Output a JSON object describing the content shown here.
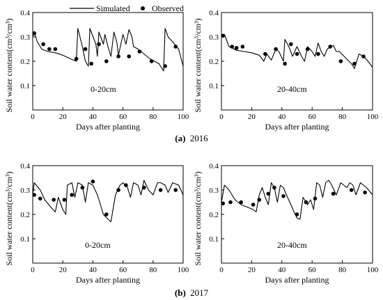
{
  "legend": {
    "simulated": "Simulated",
    "observed": "Observed"
  },
  "captions": [
    {
      "label": "(a)",
      "year": "2016"
    },
    {
      "label": "(b)",
      "year": "2017"
    }
  ],
  "chart_data": [
    {
      "type": "line",
      "panel": "2016 0-20cm",
      "annotation": "0-20cm",
      "xlabel": "Days after planting",
      "ylabel": "Soil water content(cm³/cm³)",
      "xlim": [
        0,
        100
      ],
      "ylim": [
        0.0,
        0.4
      ],
      "xticks": [
        0,
        20,
        40,
        60,
        80,
        100
      ],
      "yticks": [
        "0.1",
        "0.2",
        "0.3",
        "0.4"
      ],
      "series": [
        {
          "name": "Simulated",
          "kind": "line",
          "x": [
            0,
            1,
            3,
            6,
            10,
            15,
            20,
            25,
            29,
            30,
            33,
            35,
            37,
            38,
            42,
            43,
            44,
            47,
            48,
            50,
            52,
            54,
            56,
            57,
            60,
            62,
            64,
            66,
            67,
            70,
            74,
            78,
            84,
            87,
            88,
            90,
            93,
            97,
            100
          ],
          "y": [
            0.3,
            0.32,
            0.28,
            0.25,
            0.24,
            0.235,
            0.225,
            0.21,
            0.2,
            0.335,
            0.26,
            0.2,
            0.18,
            0.335,
            0.27,
            0.22,
            0.32,
            0.27,
            0.31,
            0.26,
            0.22,
            0.32,
            0.275,
            0.225,
            0.31,
            0.27,
            0.33,
            0.3,
            0.26,
            0.25,
            0.23,
            0.21,
            0.19,
            0.16,
            0.335,
            0.3,
            0.28,
            0.25,
            0.18
          ]
        },
        {
          "name": "Observed",
          "kind": "scatter",
          "x": [
            1,
            7,
            11,
            15,
            29,
            35,
            39,
            44,
            49,
            57,
            64,
            71,
            79,
            88,
            95
          ],
          "y": [
            0.315,
            0.27,
            0.25,
            0.25,
            0.21,
            0.25,
            0.19,
            0.27,
            0.2,
            0.22,
            0.22,
            0.24,
            0.2,
            0.18,
            0.26
          ]
        }
      ]
    },
    {
      "type": "line",
      "panel": "2016 20-40cm",
      "annotation": "20-40cm",
      "xlabel": "Days after planting",
      "ylabel": "Soil water content(cm³/cm³)",
      "xlim": [
        0,
        100
      ],
      "ylim": [
        0.0,
        0.4
      ],
      "xticks": [
        0,
        20,
        40,
        60,
        80,
        100
      ],
      "yticks": [
        "0.1",
        "0.2",
        "0.3",
        "0.4"
      ],
      "series": [
        {
          "name": "Simulated",
          "kind": "line",
          "x": [
            0,
            2,
            5,
            10,
            15,
            20,
            25,
            28,
            30,
            33,
            36,
            38,
            41,
            42,
            45,
            47,
            50,
            53,
            55,
            57,
            60,
            62,
            64,
            66,
            68,
            70,
            74,
            76,
            78,
            82,
            86,
            88,
            91,
            94,
            97,
            100
          ],
          "y": [
            0.3,
            0.31,
            0.26,
            0.245,
            0.24,
            0.235,
            0.225,
            0.2,
            0.23,
            0.205,
            0.25,
            0.24,
            0.2,
            0.29,
            0.255,
            0.22,
            0.26,
            0.22,
            0.2,
            0.26,
            0.24,
            0.22,
            0.275,
            0.24,
            0.22,
            0.25,
            0.265,
            0.24,
            0.24,
            0.215,
            0.19,
            0.17,
            0.23,
            0.22,
            0.2,
            0.175
          ]
        },
        {
          "name": "Observed",
          "kind": "scatter",
          "x": [
            1,
            7,
            10,
            14,
            29,
            36,
            42,
            46,
            50,
            57,
            64,
            72,
            79,
            88,
            94
          ],
          "y": [
            0.305,
            0.26,
            0.255,
            0.26,
            0.23,
            0.25,
            0.19,
            0.27,
            0.23,
            0.25,
            0.23,
            0.26,
            0.2,
            0.19,
            0.22
          ]
        }
      ]
    },
    {
      "type": "line",
      "panel": "2017 0-20cm",
      "annotation": "0-20cm",
      "xlabel": "Days after planting",
      "ylabel": "Soil water content(cm³/cm³)",
      "xlim": [
        0,
        100
      ],
      "ylim": [
        0.0,
        0.4
      ],
      "xticks": [
        0,
        20,
        40,
        60,
        80,
        100
      ],
      "yticks": [
        "0.1",
        "0.2",
        "0.3",
        "0.4"
      ],
      "series": [
        {
          "name": "Simulated",
          "kind": "line",
          "x": [
            0,
            1,
            5,
            8,
            12,
            15,
            17,
            20,
            22,
            23,
            26,
            28,
            30,
            33,
            35,
            37,
            40,
            43,
            45,
            47,
            50,
            52,
            55,
            58,
            60,
            63,
            65,
            67,
            70,
            72,
            74,
            77,
            80,
            83,
            85,
            88,
            90,
            93,
            97,
            100
          ],
          "y": [
            0.28,
            0.33,
            0.3,
            0.26,
            0.23,
            0.21,
            0.27,
            0.22,
            0.2,
            0.32,
            0.33,
            0.27,
            0.33,
            0.32,
            0.25,
            0.33,
            0.32,
            0.28,
            0.24,
            0.2,
            0.18,
            0.17,
            0.28,
            0.32,
            0.33,
            0.31,
            0.27,
            0.33,
            0.32,
            0.28,
            0.34,
            0.3,
            0.28,
            0.33,
            0.33,
            0.32,
            0.29,
            0.33,
            0.32,
            0.28
          ]
        },
        {
          "name": "Observed",
          "kind": "scatter",
          "x": [
            1,
            5,
            14,
            21,
            26,
            33,
            40,
            49,
            57,
            62,
            74,
            85,
            95
          ],
          "y": [
            0.28,
            0.265,
            0.26,
            0.26,
            0.28,
            0.31,
            0.335,
            0.2,
            0.3,
            0.32,
            0.31,
            0.3,
            0.3
          ]
        }
      ]
    },
    {
      "type": "line",
      "panel": "2017 20-40cm",
      "annotation": "20-40cm",
      "xlabel": "Days after planting",
      "ylabel": "Soil water content(cm³/cm³)",
      "xlim": [
        0,
        100
      ],
      "ylim": [
        0.0,
        0.4
      ],
      "xticks": [
        0,
        20,
        40,
        60,
        80,
        100
      ],
      "yticks": [
        "0.1",
        "0.2",
        "0.3",
        "0.4"
      ],
      "series": [
        {
          "name": "Simulated",
          "kind": "line",
          "x": [
            0,
            2,
            5,
            9,
            13,
            17,
            21,
            23,
            25,
            27,
            29,
            31,
            33,
            35,
            37,
            39,
            41,
            43,
            46,
            48,
            50,
            52,
            54,
            57,
            59,
            61,
            63,
            65,
            67,
            69,
            71,
            73,
            76,
            79,
            83,
            85,
            87,
            89,
            92,
            96,
            100
          ],
          "y": [
            0.25,
            0.32,
            0.3,
            0.26,
            0.24,
            0.23,
            0.22,
            0.21,
            0.28,
            0.31,
            0.27,
            0.24,
            0.33,
            0.31,
            0.25,
            0.32,
            0.31,
            0.28,
            0.24,
            0.21,
            0.185,
            0.18,
            0.27,
            0.24,
            0.26,
            0.22,
            0.33,
            0.32,
            0.27,
            0.33,
            0.34,
            0.32,
            0.28,
            0.33,
            0.31,
            0.33,
            0.32,
            0.28,
            0.33,
            0.31,
            0.28
          ]
        },
        {
          "name": "Observed",
          "kind": "scatter",
          "x": [
            1,
            6,
            13,
            21,
            25,
            31,
            35,
            41,
            50,
            56,
            62,
            74,
            86,
            95
          ],
          "y": [
            0.245,
            0.25,
            0.25,
            0.24,
            0.26,
            0.285,
            0.31,
            0.275,
            0.2,
            0.25,
            0.265,
            0.285,
            0.3,
            0.29
          ]
        }
      ]
    }
  ]
}
